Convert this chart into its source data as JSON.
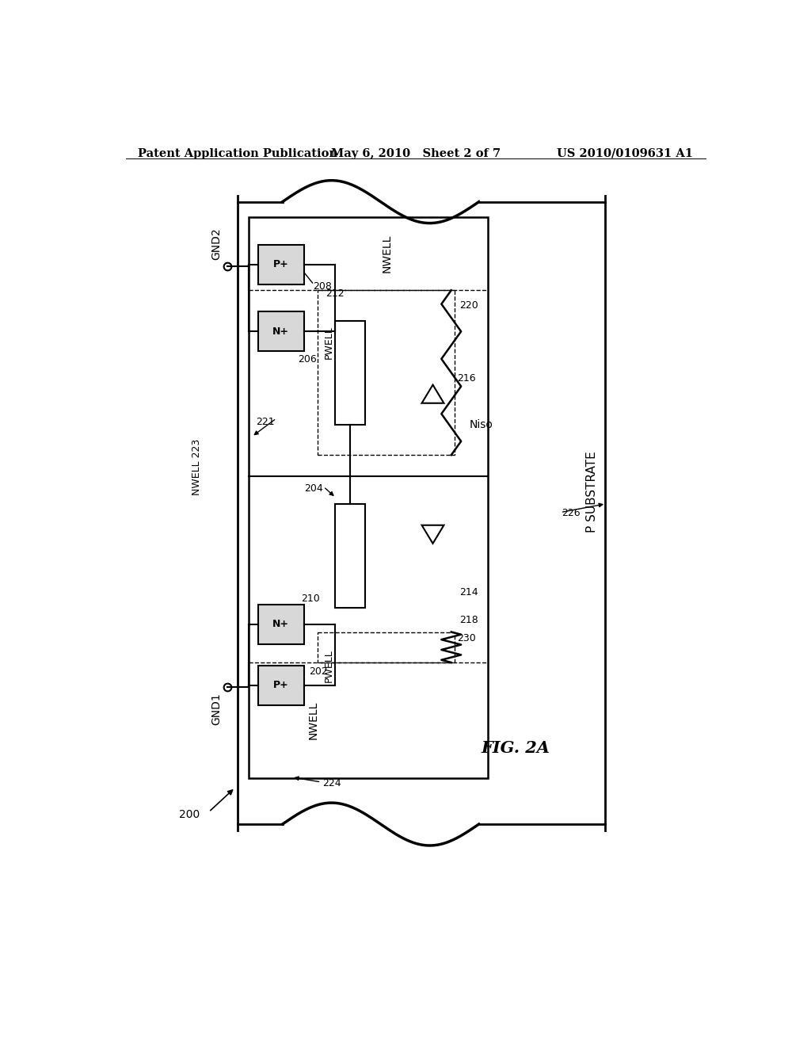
{
  "bg": "#ffffff",
  "lc": "#000000",
  "header_left": "Patent Application Publication",
  "header_center": "May 6, 2010   Sheet 2 of 7",
  "header_right": "US 2010/0109631 A1",
  "fig_label": "FIG. 2A"
}
